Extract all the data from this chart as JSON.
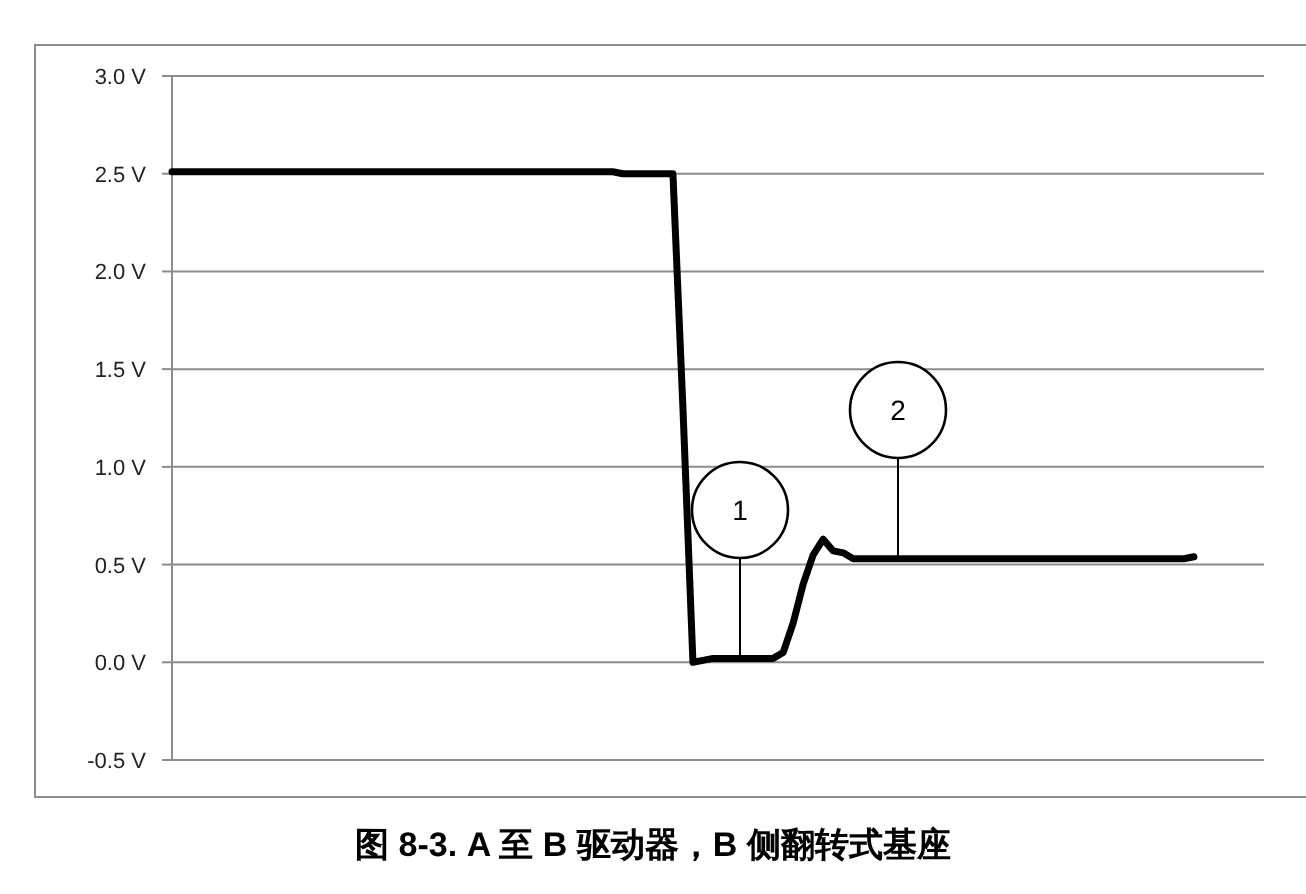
{
  "chart_data": {
    "type": "line",
    "title": "图 8-3. A 至 B 驱动器，B 侧翻转式基座",
    "categories": [
      null,
      null,
      null,
      null,
      null,
      null,
      null,
      null,
      null,
      null,
      null,
      null,
      null,
      null,
      null,
      null,
      null,
      null,
      null,
      null,
      null,
      null,
      null,
      null,
      null,
      null,
      null,
      null,
      null,
      null,
      null,
      null,
      null,
      null,
      null,
      null,
      null,
      null,
      null,
      null,
      null,
      null,
      null,
      null,
      null,
      null,
      null,
      null,
      null,
      null,
      null,
      null,
      null,
      null,
      null,
      null,
      null,
      null,
      null,
      null,
      null,
      null,
      null,
      null,
      null,
      null,
      null,
      null,
      null,
      null,
      null,
      null,
      null,
      null,
      null,
      null,
      null,
      null,
      null,
      null,
      null,
      null,
      null,
      null,
      null,
      null,
      null,
      null,
      null,
      null,
      null,
      null,
      null,
      null,
      null,
      null,
      null,
      null,
      null,
      null,
      null,
      null,
      null,
      null,
      null,
      null,
      null,
      null,
      null,
      null
    ],
    "series": [
      {
        "color": "#000000",
        "values": [
          2.51,
          2.51,
          2.51,
          2.51,
          2.51,
          2.51,
          2.51,
          2.51,
          2.51,
          2.51,
          2.51,
          2.51,
          2.51,
          2.51,
          2.51,
          2.51,
          2.51,
          2.51,
          2.51,
          2.51,
          2.51,
          2.51,
          2.51,
          2.51,
          2.51,
          2.51,
          2.51,
          2.51,
          2.51,
          2.51,
          2.51,
          2.51,
          2.51,
          2.51,
          2.51,
          2.51,
          2.51,
          2.51,
          2.51,
          2.51,
          2.51,
          2.51,
          2.51,
          2.51,
          2.51,
          2.5,
          2.5,
          2.5,
          2.5,
          2.5,
          2.5,
          1.3,
          0.0,
          0.01,
          0.02,
          0.02,
          0.02,
          0.02,
          0.02,
          0.02,
          0.02,
          0.05,
          0.2,
          0.4,
          0.55,
          0.63,
          0.57,
          0.56,
          0.53,
          0.53,
          0.53,
          0.53,
          0.53,
          0.53,
          0.53,
          0.53,
          0.53,
          0.53,
          0.53,
          0.53,
          0.53,
          0.53,
          0.53,
          0.53,
          0.53,
          0.53,
          0.53,
          0.53,
          0.53,
          0.53,
          0.53,
          0.53,
          0.53,
          0.53,
          0.53,
          0.53,
          0.53,
          0.53,
          0.53,
          0.53,
          0.53,
          0.53,
          0.54,
          null,
          null,
          null,
          null,
          null,
          null,
          null
        ]
      }
    ],
    "ylim": [
      -0.5,
      3.0
    ],
    "yticks": [
      {
        "value": -0.5,
        "label": "-0.5 V"
      },
      {
        "value": 0.0,
        "label": "0.0 V"
      },
      {
        "value": 0.5,
        "label": "0.5 V"
      },
      {
        "value": 1.0,
        "label": "1.0 V"
      },
      {
        "value": 1.5,
        "label": "1.5 V"
      },
      {
        "value": 2.0,
        "label": "2.0 V"
      },
      {
        "value": 2.5,
        "label": "2.5 V"
      },
      {
        "value": 3.0,
        "label": "3.0 V"
      }
    ],
    "grid": "y",
    "tick_labels": "y",
    "marker": "none",
    "line_style": "solid",
    "annotations": [
      {
        "text": "1",
        "y": 0.02
      },
      {
        "text": "2",
        "y": 0.53
      }
    ]
  }
}
